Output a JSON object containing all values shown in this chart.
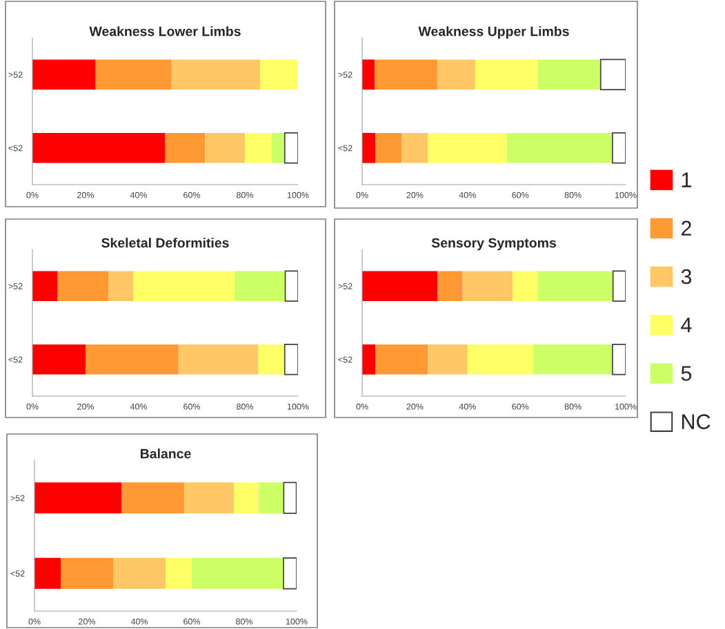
{
  "chart_data": [
    {
      "type": "bar",
      "title": "Weakness Lower Limbs",
      "orientation": "horizontal",
      "stacked": true,
      "categories": [
        ">52",
        "<52"
      ],
      "xlim": [
        0,
        100
      ],
      "xticks": [
        {
          "value": 0,
          "label": "0%"
        },
        {
          "value": 20,
          "label": "20%"
        },
        {
          "value": 40,
          "label": "40%"
        },
        {
          "value": 60,
          "label": "60%"
        },
        {
          "value": 80,
          "label": "80%"
        },
        {
          "value": 100,
          "label": "100%"
        }
      ],
      "grid": false,
      "legend": "right",
      "series": [
        {
          "name": "1",
          "color": "#ff0000",
          "values": [
            23.8,
            50
          ]
        },
        {
          "name": "2",
          "color": "#ff9933",
          "values": [
            28.6,
            15
          ]
        },
        {
          "name": "3",
          "color": "#ffc766",
          "values": [
            33.3,
            15
          ]
        },
        {
          "name": "4",
          "color": "#ffff66",
          "values": [
            14.3,
            10
          ]
        },
        {
          "name": "5",
          "color": "#ccff66",
          "values": [
            0,
            5
          ]
        },
        {
          "name": "NC",
          "color": "#ffffff",
          "values": [
            0,
            5
          ]
        }
      ]
    },
    {
      "type": "bar",
      "title": "Weakness Upper Limbs",
      "orientation": "horizontal",
      "stacked": true,
      "categories": [
        ">52",
        "<52"
      ],
      "xlim": [
        0,
        100
      ],
      "xticks": [
        {
          "value": 0,
          "label": "0%"
        },
        {
          "value": 20,
          "label": "20%"
        },
        {
          "value": 40,
          "label": "40%"
        },
        {
          "value": 60,
          "label": "60%"
        },
        {
          "value": 80,
          "label": "80%"
        },
        {
          "value": 100,
          "label": "100%"
        }
      ],
      "grid": false,
      "series": [
        {
          "color": "#ff0000",
          "values": [
            4.8,
            5
          ]
        },
        {
          "color": "#ff9933",
          "values": [
            23.8,
            10
          ]
        },
        {
          "color": "#ffc766",
          "values": [
            14.3,
            10
          ]
        },
        {
          "color": "#ffff66",
          "values": [
            23.8,
            30
          ]
        },
        {
          "color": "#ccff66",
          "values": [
            23.8,
            40
          ]
        },
        {
          "color": "#ffffff",
          "values": [
            9.5,
            5
          ]
        }
      ]
    },
    {
      "type": "bar",
      "title": "Skeletal Deformities",
      "orientation": "horizontal",
      "stacked": true,
      "categories": [
        ">52",
        "<52"
      ],
      "xlim": [
        0,
        100
      ],
      "xticks": [
        {
          "value": 0,
          "label": "0%"
        },
        {
          "value": 20,
          "label": "20%"
        },
        {
          "value": 40,
          "label": "40%"
        },
        {
          "value": 60,
          "label": "60%"
        },
        {
          "value": 80,
          "label": "80%"
        },
        {
          "value": 100,
          "label": "100%"
        }
      ],
      "grid": false,
      "series": [
        {
          "color": "#ff0000",
          "values": [
            9.5,
            20
          ]
        },
        {
          "color": "#ff9933",
          "values": [
            19.1,
            35
          ]
        },
        {
          "color": "#ffc766",
          "values": [
            9.5,
            30
          ]
        },
        {
          "color": "#ffff66",
          "values": [
            38.1,
            10
          ]
        },
        {
          "color": "#ccff66",
          "values": [
            19.0,
            0
          ]
        },
        {
          "color": "#ffffff",
          "values": [
            4.8,
            5
          ]
        }
      ]
    },
    {
      "type": "bar",
      "title": "Sensory Symptoms",
      "orientation": "horizontal",
      "stacked": true,
      "categories": [
        ">52",
        "<52"
      ],
      "xlim": [
        0,
        100
      ],
      "xticks": [
        {
          "value": 0,
          "label": "0%"
        },
        {
          "value": 20,
          "label": "20%"
        },
        {
          "value": 40,
          "label": "40%"
        },
        {
          "value": 60,
          "label": "60%"
        },
        {
          "value": 80,
          "label": "80%"
        },
        {
          "value": 100,
          "label": "100%"
        }
      ],
      "grid": false,
      "series": [
        {
          "color": "#ff0000",
          "values": [
            28.6,
            5
          ]
        },
        {
          "color": "#ff9933",
          "values": [
            9.5,
            20
          ]
        },
        {
          "color": "#ffc766",
          "values": [
            19.0,
            15
          ]
        },
        {
          "color": "#ffff66",
          "values": [
            9.5,
            25
          ]
        },
        {
          "color": "#ccff66",
          "values": [
            28.6,
            30
          ]
        },
        {
          "color": "#ffffff",
          "values": [
            4.8,
            5
          ]
        }
      ]
    },
    {
      "type": "bar",
      "title": "Balance",
      "orientation": "horizontal",
      "stacked": true,
      "categories": [
        ">52",
        "<52"
      ],
      "xlim": [
        0,
        100
      ],
      "xticks": [
        {
          "value": 0,
          "label": "0%"
        },
        {
          "value": 20,
          "label": "20%"
        },
        {
          "value": 40,
          "label": "40%"
        },
        {
          "value": 60,
          "label": "60%"
        },
        {
          "value": 80,
          "label": "80%"
        },
        {
          "value": 100,
          "label": "100%"
        }
      ],
      "grid": false,
      "series": [
        {
          "color": "#ff0000",
          "values": [
            33.3,
            10
          ]
        },
        {
          "color": "#ff9933",
          "values": [
            23.8,
            20
          ]
        },
        {
          "color": "#ffc766",
          "values": [
            19.0,
            20
          ]
        },
        {
          "color": "#ffff66",
          "values": [
            9.5,
            10
          ]
        },
        {
          "color": "#ccff66",
          "values": [
            9.5,
            35
          ]
        },
        {
          "color": "#ffffff",
          "values": [
            4.8,
            5
          ]
        }
      ]
    }
  ]
}
